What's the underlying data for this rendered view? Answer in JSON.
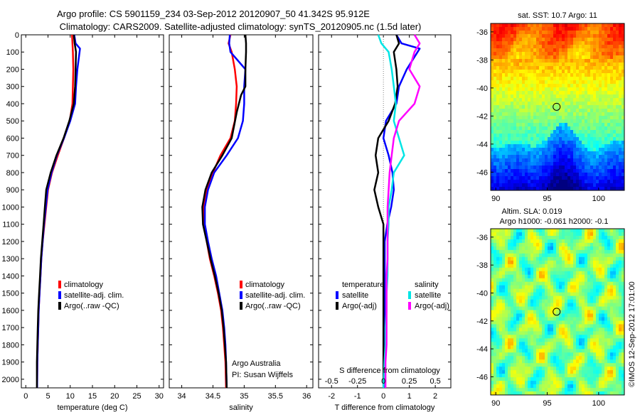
{
  "header": {
    "title_line1": "Argo profile: CS 5901159_234 03-Sep-2012 20120907_50 41.342S 95.912E",
    "title_line2": "Climatology: CARS2009. Satellite-adjusted climatology: synTS_20120905.nc (1.5d later)"
  },
  "colors": {
    "climatology": "#ff0000",
    "satellite": "#0000ff",
    "argo": "#000000",
    "sat_salinity": "#00e5e5",
    "argo_salinity": "#ff00ff",
    "zero_line": "#808080"
  },
  "footer": {
    "credit_line1": "Argo Australia",
    "credit_line2": "PI: Susan Wijffels",
    "imos_stamp": "©IMOS 12-Sep-2012 17:01:00"
  },
  "chart_data": [
    {
      "type": "line",
      "id": "temperature",
      "xlabel": "temperature (deg C)",
      "ylabel": "",
      "xlim": [
        -1,
        31
      ],
      "ylim": [
        0,
        2050
      ],
      "y_reversed": true,
      "grid": false,
      "legend_placement": "lower-center",
      "xticks": [
        0,
        5,
        10,
        15,
        20,
        25,
        30
      ],
      "xtick_labels": [
        "0",
        "5",
        "10",
        "15",
        "20",
        "25",
        "30"
      ],
      "yticks": [
        0,
        100,
        200,
        300,
        400,
        500,
        600,
        700,
        800,
        900,
        1000,
        1100,
        1200,
        1300,
        1400,
        1500,
        1600,
        1700,
        1800,
        1900,
        2000
      ],
      "ytick_labels": [
        "0",
        "100",
        "200",
        "300",
        "400",
        "500",
        "600",
        "700",
        "800",
        "900",
        "1000",
        "1100",
        "1200",
        "1300",
        "1400",
        "1500",
        "1600",
        "1700",
        "1800",
        "1900",
        "2000"
      ],
      "series": [
        {
          "name": "climatology",
          "color_key": "climatology",
          "x": [
            10.4,
            10.5,
            10.6,
            10.7,
            10.6,
            10.5,
            9.9,
            8.6,
            7.2,
            5.9,
            5.0,
            4.6,
            4.2,
            3.8,
            3.5,
            3.3,
            3.1,
            2.9,
            2.8,
            2.7,
            2.6,
            2.55
          ],
          "y": [
            0,
            50,
            100,
            200,
            300,
            400,
            500,
            600,
            700,
            800,
            900,
            1000,
            1100,
            1200,
            1300,
            1400,
            1500,
            1600,
            1700,
            1800,
            1900,
            2050
          ]
        },
        {
          "name": "satellite-adj. clim.",
          "color_key": "satellite",
          "x": [
            10.9,
            11.2,
            12.2,
            11.6,
            11.3,
            11.1,
            10.0,
            8.6,
            7.0,
            5.8,
            4.9,
            4.5,
            4.1,
            3.8,
            3.5,
            3.3,
            3.1,
            2.9,
            2.8,
            2.7,
            2.6,
            2.55
          ],
          "y": [
            0,
            50,
            80,
            200,
            300,
            400,
            500,
            600,
            700,
            800,
            900,
            1000,
            1100,
            1200,
            1300,
            1400,
            1500,
            1600,
            1700,
            1800,
            1900,
            2050
          ]
        },
        {
          "name": "Argo(..raw -QC)",
          "color_key": "argo",
          "x": [
            10.8,
            11.0,
            11.3,
            11.2,
            11.1,
            10.8,
            9.8,
            8.5,
            6.9,
            5.6,
            4.6,
            4.3,
            4.0,
            3.7,
            3.4,
            3.2,
            3.0,
            2.8,
            2.7,
            2.6,
            2.5,
            2.5
          ],
          "y": [
            0,
            50,
            100,
            200,
            300,
            400,
            500,
            600,
            700,
            800,
            900,
            1000,
            1100,
            1200,
            1300,
            1400,
            1500,
            1600,
            1700,
            1800,
            1900,
            2050
          ]
        }
      ]
    },
    {
      "type": "line",
      "id": "salinity",
      "xlabel": "salinity",
      "ylabel": "",
      "xlim": [
        33.8,
        36.1
      ],
      "ylim": [
        0,
        2050
      ],
      "y_reversed": true,
      "grid": false,
      "legend_placement": "lower-center",
      "xticks": [
        34,
        34.5,
        35,
        35.5,
        36
      ],
      "xtick_labels": [
        "34",
        "34.5",
        "35",
        "35.5",
        "36"
      ],
      "yticks": [
        0,
        100,
        200,
        300,
        400,
        500,
        600,
        700,
        800,
        900,
        1000,
        1100,
        1200,
        1300,
        1400,
        1500,
        1600,
        1700,
        1800,
        1900,
        2000
      ],
      "series": [
        {
          "name": "climatology",
          "color_key": "climatology",
          "x": [
            34.78,
            34.75,
            34.8,
            34.85,
            34.88,
            34.87,
            34.85,
            34.78,
            34.62,
            34.5,
            34.4,
            34.35,
            34.36,
            34.4,
            34.45,
            34.52,
            34.58,
            34.63,
            34.66,
            34.68,
            34.7,
            34.71
          ],
          "y": [
            0,
            50,
            100,
            200,
            300,
            400,
            500,
            600,
            700,
            800,
            900,
            1000,
            1100,
            1200,
            1300,
            1400,
            1500,
            1600,
            1700,
            1800,
            1900,
            2050
          ]
        },
        {
          "name": "satellite-adj. clim.",
          "color_key": "satellite",
          "x": [
            34.77,
            34.76,
            34.78,
            35.02,
            35.0,
            35.0,
            34.98,
            34.9,
            34.72,
            34.52,
            34.42,
            34.37,
            34.37,
            34.42,
            34.48,
            34.55,
            34.6,
            34.65,
            34.68,
            34.7,
            34.71,
            34.72
          ],
          "y": [
            0,
            50,
            100,
            200,
            300,
            400,
            500,
            600,
            700,
            800,
            900,
            1000,
            1100,
            1200,
            1300,
            1400,
            1500,
            1600,
            1700,
            1800,
            1900,
            2050
          ]
        },
        {
          "name": "Argo(..raw -QC)",
          "color_key": "argo",
          "x": [
            35.02,
            35.03,
            35.03,
            35.02,
            35.02,
            34.95,
            34.88,
            34.8,
            34.65,
            34.48,
            34.38,
            34.33,
            34.34,
            34.4,
            34.46,
            34.53,
            34.59,
            34.64,
            34.67,
            34.69,
            34.71,
            34.72
          ],
          "y": [
            0,
            50,
            100,
            200,
            300,
            350,
            450,
            600,
            700,
            800,
            900,
            1000,
            1100,
            1200,
            1300,
            1400,
            1500,
            1600,
            1700,
            1800,
            1900,
            2050
          ]
        }
      ]
    },
    {
      "type": "line",
      "id": "difference",
      "xlabel": "T difference from climatology",
      "xlabel_top": "S difference from climatology",
      "ylabel": "",
      "xlim": [
        -2.5,
        2.6
      ],
      "ylim": [
        0,
        2050
      ],
      "y_reversed": true,
      "grid": false,
      "legend_placement": "lower-center",
      "legend_headers": {
        "temperature": "temperature",
        "salinity": "salinity"
      },
      "xticks": [
        -2,
        -1,
        0,
        1,
        2
      ],
      "xtick_labels": [
        "-2",
        "-1",
        "0",
        "1",
        "2"
      ],
      "s_xticks": [
        -0.5,
        -0.25,
        0,
        0.25,
        0.5
      ],
      "s_xtick_labels": [
        "-0.5",
        "-0.25",
        "0",
        "0.25",
        "0.5"
      ],
      "yticks": [
        0,
        100,
        200,
        300,
        400,
        500,
        600,
        700,
        800,
        900,
        1000,
        1100,
        1200,
        1300,
        1400,
        1500,
        1600,
        1700,
        1800,
        1900,
        2000
      ],
      "series": [
        {
          "name": "satellite",
          "group": "temperature",
          "color_key": "satellite",
          "x": [
            0.5,
            0.7,
            1.4,
            0.9,
            0.6,
            0.5,
            0.1,
            0.0,
            0.2,
            0.35,
            0.4,
            0.3,
            0.15,
            0.05,
            0.05,
            0.05,
            0.05,
            0.05,
            0.05,
            0.05,
            0.05,
            0.05
          ],
          "y": [
            0,
            50,
            80,
            200,
            300,
            400,
            500,
            600,
            700,
            800,
            900,
            1000,
            1100,
            1200,
            1300,
            1400,
            1500,
            1600,
            1700,
            1800,
            1900,
            2050
          ]
        },
        {
          "name": "Argo(-adj)",
          "group": "temperature",
          "color_key": "argo",
          "x": [
            0.5,
            0.6,
            0.4,
            0.5,
            0.55,
            0.45,
            0.2,
            -0.2,
            -0.3,
            -0.2,
            -0.35,
            -0.2,
            0.0,
            0.0,
            0.0,
            0.0,
            0.0,
            0.0,
            0.0,
            0.0,
            0.0,
            0.0
          ],
          "y": [
            0,
            50,
            100,
            200,
            300,
            400,
            500,
            600,
            700,
            800,
            900,
            1000,
            1100,
            1200,
            1300,
            1400,
            1500,
            1600,
            1700,
            1800,
            1900,
            2050
          ]
        },
        {
          "name": "satellite",
          "group": "salinity",
          "color_key": "sat_salinity",
          "x": [
            -0.05,
            -0.02,
            0.05,
            0.08,
            0.1,
            0.12,
            0.1,
            0.15,
            0.2,
            0.1,
            0.08,
            0.05,
            0.05,
            0.04,
            0.04,
            0.04,
            0.03,
            0.03,
            0.02,
            0.02,
            0.01,
            0.0
          ],
          "y": [
            0,
            50,
            100,
            200,
            300,
            400,
            500,
            600,
            700,
            800,
            900,
            1000,
            1100,
            1200,
            1300,
            1400,
            1500,
            1600,
            1700,
            1800,
            1900,
            2050
          ]
        },
        {
          "name": "Argo(-adj)",
          "group": "salinity",
          "color_key": "argo_salinity",
          "x": [
            0.3,
            0.35,
            0.3,
            0.25,
            0.35,
            0.3,
            0.15,
            0.1,
            0.08,
            0.06,
            0.05,
            0.04,
            0.04,
            0.04,
            0.04,
            0.03,
            0.03,
            0.03,
            0.03,
            0.03,
            0.02,
            0.02
          ],
          "y": [
            0,
            50,
            100,
            200,
            300,
            400,
            500,
            600,
            700,
            800,
            900,
            1000,
            1100,
            1200,
            1300,
            1400,
            1500,
            1600,
            1700,
            1800,
            1900,
            2050
          ]
        }
      ]
    },
    {
      "type": "heatmap",
      "id": "sst_map",
      "title": "sat. SST: 10.7 Argo: 11",
      "xlim": [
        89.5,
        102.5
      ],
      "ylim": [
        -47.3,
        -35.4
      ],
      "xticks": [
        90,
        95,
        100
      ],
      "xtick_labels": [
        "90",
        "95",
        "100"
      ],
      "yticks": [
        -36,
        -38,
        -40,
        -42,
        -44,
        -46
      ],
      "ytick_labels": [
        "-36",
        "-38",
        "-40",
        "-42",
        "-44",
        "-46"
      ],
      "marker": {
        "lon": 95.912,
        "lat": -41.342
      }
    },
    {
      "type": "heatmap",
      "id": "sla_map",
      "title_line1": "Altim. SLA: 0.019",
      "title_line2": "Argo h1000: -0.061 h2000: -0.1",
      "xlim": [
        89.5,
        102.5
      ],
      "ylim": [
        -47.3,
        -35.4
      ],
      "xticks": [
        90,
        95,
        100
      ],
      "xtick_labels": [
        "90",
        "95",
        "100"
      ],
      "yticks": [
        -36,
        -38,
        -40,
        -42,
        -44,
        -46
      ],
      "ytick_labels": [
        "-36",
        "-38",
        "-40",
        "-42",
        "-44",
        "-46"
      ],
      "marker": {
        "lon": 95.912,
        "lat": -41.342
      }
    }
  ]
}
